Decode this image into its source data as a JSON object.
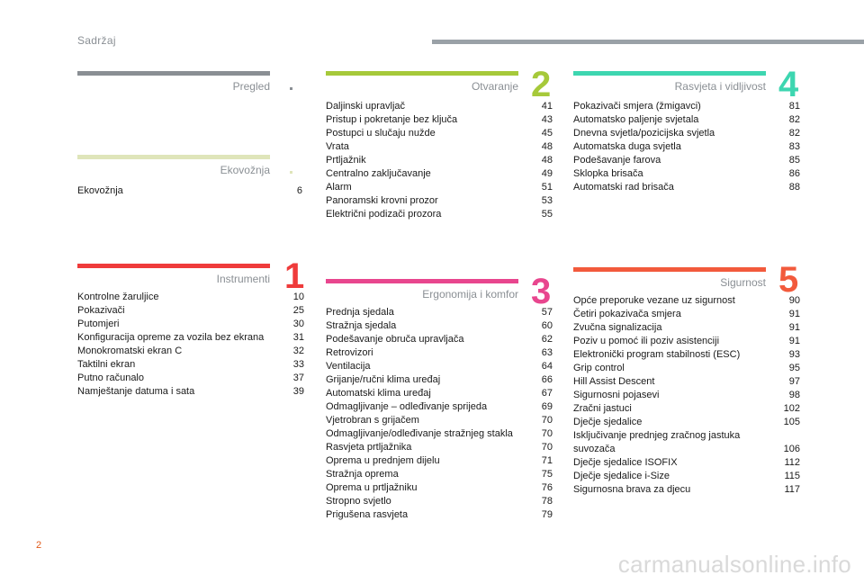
{
  "header": {
    "title": "Sadržaj"
  },
  "sections": {
    "pregled": {
      "title": "Pregled",
      "color": "#8a8f94",
      "items": []
    },
    "ekovoznja": {
      "title": "Ekovožnja",
      "color": "#dfe5ba",
      "items": [
        {
          "label": "Ekovožnja",
          "page": "6"
        }
      ]
    },
    "instrumenti": {
      "title": "Instrumenti",
      "number": "1",
      "color": "#ef3b3b",
      "items": [
        {
          "label": "Kontrolne žaruljice",
          "page": "10"
        },
        {
          "label": "Pokazivači",
          "page": "25"
        },
        {
          "label": "Putomjeri",
          "page": "30"
        },
        {
          "label": "Konfiguracija opreme za vozila bez ekrana",
          "page": "31"
        },
        {
          "label": "Monokromatski ekran C",
          "page": "32"
        },
        {
          "label": "Taktilni ekran",
          "page": "33"
        },
        {
          "label": "Putno računalo",
          "page": "37"
        },
        {
          "label": "Namještanje datuma i sata",
          "page": "39"
        }
      ]
    },
    "otvaranje": {
      "title": "Otvaranje",
      "number": "2",
      "color": "#a6c93a",
      "items": [
        {
          "label": "Daljinski upravljač",
          "page": "41"
        },
        {
          "label": "Pristup i pokretanje bez ključa",
          "page": "43"
        },
        {
          "label": "Postupci u slučaju nužde",
          "page": "45"
        },
        {
          "label": "Vrata",
          "page": "48"
        },
        {
          "label": "Prtljažnik",
          "page": "48"
        },
        {
          "label": "Centralno zaključavanje",
          "page": "49"
        },
        {
          "label": "Alarm",
          "page": "51"
        },
        {
          "label": "Panoramski krovni prozor",
          "page": "53"
        },
        {
          "label": "Električni podizači prozora",
          "page": "55"
        }
      ]
    },
    "ergonomija": {
      "title": "Ergonomija i komfor",
      "number": "3",
      "color": "#e8468e",
      "items": [
        {
          "label": "Prednja sjedala",
          "page": "57"
        },
        {
          "label": "Stražnja sjedala",
          "page": "60"
        },
        {
          "label": "Podešavanje obruča upravljača",
          "page": "62"
        },
        {
          "label": "Retrovizori",
          "page": "63"
        },
        {
          "label": "Ventilacija",
          "page": "64"
        },
        {
          "label": "Grijanje/ručni klima uređaj",
          "page": "66"
        },
        {
          "label": "Automatski klima uređaj",
          "page": "67"
        },
        {
          "label": "Odmagljivanje – odleđivanje sprijeda",
          "page": "69"
        },
        {
          "label": "Vjetrobran s grijačem",
          "page": "70"
        },
        {
          "label": "Odmagljivanje/odleđivanje stražnjeg stakla",
          "page": "70"
        },
        {
          "label": "Rasvjeta prtljažnika",
          "page": "70"
        },
        {
          "label": "Oprema u prednjem dijelu",
          "page": "71"
        },
        {
          "label": "Stražnja oprema",
          "page": "75"
        },
        {
          "label": "Oprema u prtljažniku",
          "page": "76"
        },
        {
          "label": "Stropno svjetlo",
          "page": "78"
        },
        {
          "label": "Prigušena rasvjeta",
          "page": "79"
        }
      ]
    },
    "rasvjeta": {
      "title": "Rasvjeta i vidljivost",
      "number": "4",
      "color": "#3dd6b0",
      "items": [
        {
          "label": "Pokazivači smjera (žmigavci)",
          "page": "81"
        },
        {
          "label": "Automatsko paljenje svjetala",
          "page": "82"
        },
        {
          "label": "Dnevna svjetla/pozicijska svjetla",
          "page": "82"
        },
        {
          "label": "Automatska duga svjetla",
          "page": "83"
        },
        {
          "label": "Podešavanje farova",
          "page": "85"
        },
        {
          "label": "Sklopka brisača",
          "page": "86"
        },
        {
          "label": "Automatski rad brisača",
          "page": "88"
        }
      ]
    },
    "sigurnost": {
      "title": "Sigurnost",
      "number": "5",
      "color": "#f25a3c",
      "items": [
        {
          "label": "Opće preporuke vezane uz sigurnost",
          "page": "90"
        },
        {
          "label": "Četiri pokazivača smjera",
          "page": "91"
        },
        {
          "label": "Zvučna signalizacija",
          "page": "91"
        },
        {
          "label": "Poziv u pomoć ili poziv asistenciji",
          "page": "91"
        },
        {
          "label": "Elektronički program stabilnosti (ESC)",
          "page": "93"
        },
        {
          "label": "Grip control",
          "page": "95"
        },
        {
          "label": "Hill Assist Descent",
          "page": "97"
        },
        {
          "label": "Sigurnosni pojasevi",
          "page": "98"
        },
        {
          "label": "Zračni jastuci",
          "page": "102"
        },
        {
          "label": "Dječje sjedalice",
          "page": "105"
        },
        {
          "label": "Isključivanje prednjeg zračnog jastuka suvozača",
          "page": "106"
        },
        {
          "label": "Dječje sjedalice ISOFIX",
          "page": "112"
        },
        {
          "label": "Dječje sjedalice i-Size",
          "page": "115"
        },
        {
          "label": "Sigurnosna brava za djecu",
          "page": "117"
        }
      ]
    }
  },
  "footer": {
    "page_number": "2",
    "watermark": "carmanualsonline.info"
  }
}
